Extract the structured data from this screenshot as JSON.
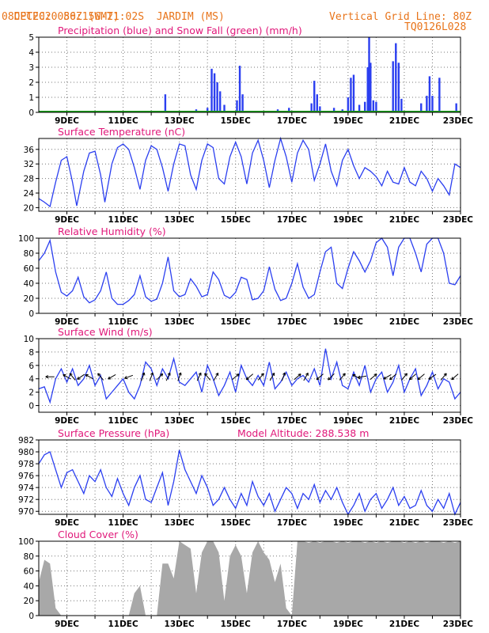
{
  "header": {
    "source": "CPTEC:",
    "coords": "056:15W-21:02S",
    "station": "JARDIM (MS)",
    "run": "08DEC2020 80Z (GMT)",
    "grid_note": "Vertical Grid Line: 80Z",
    "model_id": "TQ0126L028"
  },
  "colors": {
    "header": "#e8741a",
    "title": "#e0187a",
    "line": "#2b3ff0",
    "snow": "#1aa01a",
    "cloud": "#a8a8a8",
    "arrow": "#000000"
  },
  "x_tick_labels": [
    "9DEC",
    "11DEC",
    "13DEC",
    "15DEC",
    "17DEC",
    "19DEC",
    "21DEC",
    "23DEC"
  ],
  "chart_data": [
    {
      "id": "precip",
      "type": "bar",
      "title": "Precipitation (blue) and Snow Fall (green) (mm/h)",
      "ylim": [
        0,
        5
      ],
      "yticks": [
        "0",
        "1",
        "2",
        "3",
        "4",
        "5"
      ],
      "series": [
        {
          "name": "Precipitation",
          "values": [
            [
              12.5,
              1.2
            ],
            [
              13.6,
              0.2
            ],
            [
              14.0,
              0.3
            ],
            [
              14.15,
              2.9
            ],
            [
              14.25,
              2.6
            ],
            [
              14.35,
              2.0
            ],
            [
              14.45,
              1.4
            ],
            [
              14.6,
              0.5
            ],
            [
              15.05,
              0.8
            ],
            [
              15.15,
              3.1
            ],
            [
              15.25,
              1.2
            ],
            [
              16.5,
              0.2
            ],
            [
              16.9,
              0.3
            ],
            [
              17.7,
              0.6
            ],
            [
              17.8,
              2.1
            ],
            [
              17.9,
              1.2
            ],
            [
              18.0,
              0.4
            ],
            [
              18.5,
              0.3
            ],
            [
              18.8,
              0.2
            ],
            [
              19.0,
              1.0
            ],
            [
              19.1,
              2.3
            ],
            [
              19.2,
              2.5
            ],
            [
              19.4,
              0.5
            ],
            [
              19.6,
              0.7
            ],
            [
              19.7,
              3.0
            ],
            [
              19.75,
              5.0
            ],
            [
              19.8,
              3.3
            ],
            [
              19.9,
              0.8
            ],
            [
              20.0,
              0.7
            ],
            [
              20.6,
              3.4
            ],
            [
              20.7,
              4.6
            ],
            [
              20.8,
              3.3
            ],
            [
              20.9,
              0.9
            ],
            [
              21.6,
              0.6
            ],
            [
              21.8,
              1.1
            ],
            [
              21.9,
              2.4
            ],
            [
              22.0,
              1.1
            ],
            [
              22.25,
              2.3
            ],
            [
              22.85,
              0.6
            ]
          ]
        },
        {
          "name": "Snow Fall",
          "values": []
        }
      ]
    },
    {
      "id": "temp",
      "type": "line",
      "title": "Surface Temperature (nC)",
      "ylim": [
        19,
        39
      ],
      "yticks": [
        "20",
        "24",
        "28",
        "32",
        "36"
      ],
      "x": [
        8.0,
        8.2,
        8.4,
        8.6,
        8.8,
        9.0,
        9.2,
        9.35,
        9.6,
        9.8,
        10.0,
        10.2,
        10.35,
        10.6,
        10.8,
        11.0,
        11.2,
        11.4,
        11.6,
        11.8,
        12.0,
        12.2,
        12.4,
        12.6,
        12.8,
        13.0,
        13.2,
        13.4,
        13.6,
        13.8,
        14.0,
        14.2,
        14.4,
        14.6,
        14.8,
        15.0,
        15.2,
        15.4,
        15.6,
        15.8,
        16.0,
        16.2,
        16.4,
        16.6,
        16.8,
        17.0,
        17.2,
        17.4,
        17.6,
        17.8,
        18.0,
        18.2,
        18.4,
        18.6,
        18.8,
        19.0,
        19.2,
        19.4,
        19.6,
        19.8,
        20.0,
        20.2,
        20.4,
        20.6,
        20.8,
        21.0,
        21.2,
        21.4,
        21.6,
        21.8,
        22.0,
        22.2,
        22.4,
        22.6,
        22.8,
        23.0
      ],
      "values": [
        22.5,
        21.5,
        20.3,
        27.0,
        33.0,
        34.0,
        27.0,
        20.5,
        30.0,
        35.0,
        35.5,
        29.0,
        21.5,
        32.0,
        36.5,
        37.5,
        36.0,
        31.0,
        25.0,
        33.0,
        37.0,
        36.0,
        31.0,
        24.5,
        32.0,
        37.5,
        37.0,
        29.0,
        25.0,
        33.0,
        37.5,
        36.5,
        28.0,
        26.5,
        34.0,
        38.0,
        34.0,
        26.5,
        35.0,
        38.5,
        33.0,
        25.5,
        33.0,
        39.0,
        34.0,
        27.0,
        35.0,
        38.5,
        36.0,
        27.5,
        32.0,
        37.5,
        30.0,
        26.0,
        33.0,
        36.0,
        31.5,
        28.0,
        31.0,
        30.0,
        28.5,
        26.0,
        30.0,
        27.0,
        26.5,
        31.0,
        27.0,
        26.0,
        30.0,
        28.0,
        24.5,
        28.0,
        26.0,
        23.5,
        32.0,
        31.0
      ],
      "grid": true
    },
    {
      "id": "rh",
      "type": "line",
      "title": "Relative Humidity (%)",
      "ylim": [
        0,
        100
      ],
      "yticks": [
        "0",
        "20",
        "40",
        "60",
        "80",
        "100"
      ],
      "x": [
        8.0,
        8.2,
        8.4,
        8.6,
        8.8,
        9.0,
        9.2,
        9.4,
        9.6,
        9.8,
        10.0,
        10.2,
        10.4,
        10.6,
        10.8,
        11.0,
        11.2,
        11.4,
        11.6,
        11.8,
        12.0,
        12.2,
        12.4,
        12.6,
        12.8,
        13.0,
        13.2,
        13.4,
        13.6,
        13.8,
        14.0,
        14.2,
        14.4,
        14.6,
        14.8,
        15.0,
        15.2,
        15.4,
        15.6,
        15.8,
        16.0,
        16.2,
        16.4,
        16.6,
        16.8,
        17.0,
        17.2,
        17.4,
        17.6,
        17.8,
        18.0,
        18.2,
        18.4,
        18.6,
        18.8,
        19.0,
        19.2,
        19.4,
        19.6,
        19.8,
        20.0,
        20.2,
        20.4,
        20.6,
        20.8,
        21.0,
        21.2,
        21.4,
        21.6,
        21.8,
        22.0,
        22.2,
        22.4,
        22.6,
        22.8,
        23.0
      ],
      "values": [
        70,
        80,
        97,
        55,
        28,
        23,
        30,
        48,
        22,
        14,
        18,
        30,
        55,
        20,
        12,
        12,
        17,
        25,
        50,
        22,
        16,
        19,
        40,
        75,
        30,
        22,
        25,
        46,
        36,
        22,
        25,
        55,
        45,
        24,
        20,
        28,
        48,
        45,
        18,
        20,
        30,
        62,
        32,
        17,
        20,
        40,
        66,
        35,
        20,
        25,
        55,
        82,
        88,
        40,
        33,
        60,
        82,
        70,
        55,
        70,
        94,
        100,
        88,
        50,
        88,
        100,
        100,
        80,
        55,
        92,
        100,
        100,
        80,
        40,
        38,
        50
      ],
      "grid": true
    },
    {
      "id": "wind",
      "type": "line",
      "title": "Surface Wind (m/s)",
      "ylim": [
        -1,
        10
      ],
      "yticks": [
        "0",
        "2",
        "4",
        "6",
        "8",
        "10"
      ],
      "x": [
        8.0,
        8.2,
        8.4,
        8.6,
        8.8,
        9.0,
        9.2,
        9.4,
        9.6,
        9.8,
        10.0,
        10.2,
        10.4,
        10.6,
        10.8,
        11.0,
        11.2,
        11.4,
        11.6,
        11.8,
        12.0,
        12.2,
        12.4,
        12.6,
        12.8,
        13.0,
        13.2,
        13.4,
        13.6,
        13.8,
        14.0,
        14.2,
        14.4,
        14.6,
        14.8,
        15.0,
        15.2,
        15.4,
        15.6,
        15.8,
        16.0,
        16.2,
        16.4,
        16.6,
        16.8,
        17.0,
        17.2,
        17.4,
        17.6,
        17.8,
        18.0,
        18.2,
        18.4,
        18.6,
        18.8,
        19.0,
        19.2,
        19.4,
        19.6,
        19.8,
        20.0,
        20.2,
        20.4,
        20.6,
        20.8,
        21.0,
        21.2,
        21.4,
        21.6,
        21.8,
        22.0,
        22.2,
        22.4,
        22.6,
        22.8,
        23.0
      ],
      "values": [
        2.5,
        2.8,
        0.5,
        4.0,
        5.5,
        3.5,
        5.5,
        3.0,
        4.0,
        6.0,
        3.0,
        4.5,
        1.0,
        2.0,
        3.0,
        4.0,
        2.0,
        1.0,
        3.0,
        6.5,
        5.5,
        3.0,
        5.5,
        4.0,
        7.0,
        3.5,
        3.0,
        4.0,
        5.0,
        2.0,
        6.0,
        4.0,
        1.5,
        3.0,
        5.0,
        2.0,
        6.0,
        4.0,
        3.0,
        4.5,
        3.0,
        6.5,
        2.5,
        3.5,
        5.0,
        3.0,
        4.0,
        4.5,
        3.5,
        5.5,
        3.0,
        8.5,
        4.0,
        6.5,
        3.0,
        2.5,
        5.0,
        3.0,
        6.0,
        2.0,
        4.0,
        5.0,
        2.0,
        3.5,
        6.0,
        2.0,
        4.0,
        5.5,
        1.5,
        3.0,
        5.0,
        2.5,
        4.0,
        3.5,
        1.0,
        2.0
      ],
      "arrows": [
        [
          8.4,
          270
        ],
        [
          9.0,
          300
        ],
        [
          9.2,
          320
        ],
        [
          9.5,
          235
        ],
        [
          9.8,
          300
        ],
        [
          10.2,
          320
        ],
        [
          10.6,
          240
        ],
        [
          11.2,
          250
        ],
        [
          11.7,
          20
        ],
        [
          12.0,
          20
        ],
        [
          12.3,
          45
        ],
        [
          12.6,
          25
        ],
        [
          13.0,
          20
        ],
        [
          13.7,
          25
        ],
        [
          14.0,
          320
        ],
        [
          14.3,
          30
        ],
        [
          15.0,
          50
        ],
        [
          15.5,
          230
        ],
        [
          15.9,
          40
        ],
        [
          16.3,
          30
        ],
        [
          16.7,
          20
        ],
        [
          17.2,
          50
        ],
        [
          17.5,
          30
        ],
        [
          18.0,
          230
        ],
        [
          18.4,
          225
        ],
        [
          18.8,
          40
        ],
        [
          19.3,
          300
        ],
        [
          19.5,
          260
        ],
        [
          19.9,
          50
        ],
        [
          20.4,
          240
        ],
        [
          20.6,
          230
        ],
        [
          21.0,
          40
        ],
        [
          21.3,
          230
        ],
        [
          21.6,
          230
        ],
        [
          22.0,
          235
        ],
        [
          22.4,
          40
        ],
        [
          22.8,
          230
        ]
      ],
      "grid": true
    },
    {
      "id": "pressure",
      "type": "line",
      "title": "Surface Pressure (hPa)",
      "altitude_note": "Model Altitude: 288.538 m",
      "ylim": [
        969.5,
        982
      ],
      "yticks": [
        "970",
        "972",
        "974",
        "976",
        "978",
        "980",
        "982"
      ],
      "x": [
        8.0,
        8.2,
        8.4,
        8.6,
        8.8,
        9.0,
        9.2,
        9.4,
        9.6,
        9.8,
        10.0,
        10.2,
        10.4,
        10.6,
        10.8,
        11.0,
        11.2,
        11.4,
        11.6,
        11.8,
        12.0,
        12.2,
        12.4,
        12.6,
        12.8,
        13.0,
        13.2,
        13.4,
        13.6,
        13.8,
        14.0,
        14.2,
        14.4,
        14.6,
        14.8,
        15.0,
        15.2,
        15.4,
        15.6,
        15.8,
        16.0,
        16.2,
        16.4,
        16.6,
        16.8,
        17.0,
        17.2,
        17.4,
        17.6,
        17.8,
        18.0,
        18.2,
        18.4,
        18.6,
        18.8,
        19.0,
        19.2,
        19.4,
        19.6,
        19.8,
        20.0,
        20.2,
        20.4,
        20.6,
        20.8,
        21.0,
        21.2,
        21.4,
        21.6,
        21.8,
        22.0,
        22.2,
        22.4,
        22.6,
        22.8,
        23.0
      ],
      "values": [
        978,
        979.5,
        980,
        977,
        974,
        976.5,
        977,
        975,
        973,
        976,
        975,
        977,
        974,
        972.5,
        975.5,
        973,
        971,
        974,
        976,
        972,
        971.5,
        974,
        976.5,
        971,
        975,
        980.3,
        977,
        975,
        973,
        976,
        974,
        971,
        972,
        974,
        972,
        970.5,
        973,
        971,
        975,
        972.5,
        971,
        973,
        970,
        972,
        974,
        973,
        970.5,
        973,
        972,
        974.5,
        971.5,
        973.5,
        972,
        974,
        971.5,
        969.5,
        971,
        973,
        970,
        972,
        973,
        970.5,
        972,
        974,
        971,
        972.5,
        970.5,
        971,
        973.5,
        971,
        970,
        972,
        970.5,
        973,
        969.5,
        971.5
      ],
      "grid": true
    },
    {
      "id": "cloud",
      "type": "area",
      "title": "Cloud Cover (%)",
      "ylim": [
        0,
        100
      ],
      "yticks": [
        "0",
        "20",
        "40",
        "60",
        "80",
        "100"
      ],
      "x": [
        8.0,
        8.2,
        8.4,
        8.6,
        8.8,
        9.0,
        9.2,
        9.4,
        9.6,
        9.8,
        10.0,
        10.2,
        10.4,
        10.6,
        10.8,
        11.0,
        11.2,
        11.4,
        11.6,
        11.8,
        12.0,
        12.2,
        12.4,
        12.6,
        12.8,
        13.0,
        13.2,
        13.4,
        13.6,
        13.8,
        14.0,
        14.2,
        14.4,
        14.6,
        14.8,
        15.0,
        15.2,
        15.4,
        15.6,
        15.8,
        16.0,
        16.2,
        16.4,
        16.6,
        16.8,
        17.0,
        17.2,
        17.4,
        17.6,
        17.8,
        18.0,
        18.2,
        18.4,
        18.6,
        18.8,
        19.0,
        19.2,
        19.4,
        19.6,
        19.8,
        20.0,
        20.2,
        20.4,
        20.6,
        20.8,
        21.0,
        21.2,
        21.4,
        21.6,
        21.8,
        22.0,
        22.2,
        22.4,
        22.6,
        22.8,
        23.0
      ],
      "values": [
        45,
        75,
        70,
        10,
        0,
        0,
        0,
        0,
        0,
        0,
        0,
        0,
        0,
        0,
        0,
        0,
        0,
        30,
        40,
        0,
        0,
        0,
        70,
        70,
        50,
        100,
        95,
        90,
        30,
        85,
        100,
        100,
        85,
        20,
        80,
        95,
        80,
        30,
        85,
        100,
        85,
        75,
        45,
        70,
        10,
        0,
        100,
        100,
        98,
        100,
        98,
        100,
        100,
        98,
        100,
        98,
        100,
        100,
        98,
        100,
        98,
        100,
        98,
        100,
        100,
        98,
        100,
        98,
        100,
        98,
        100,
        100,
        98,
        100,
        98,
        100
      ],
      "grid": true
    }
  ]
}
